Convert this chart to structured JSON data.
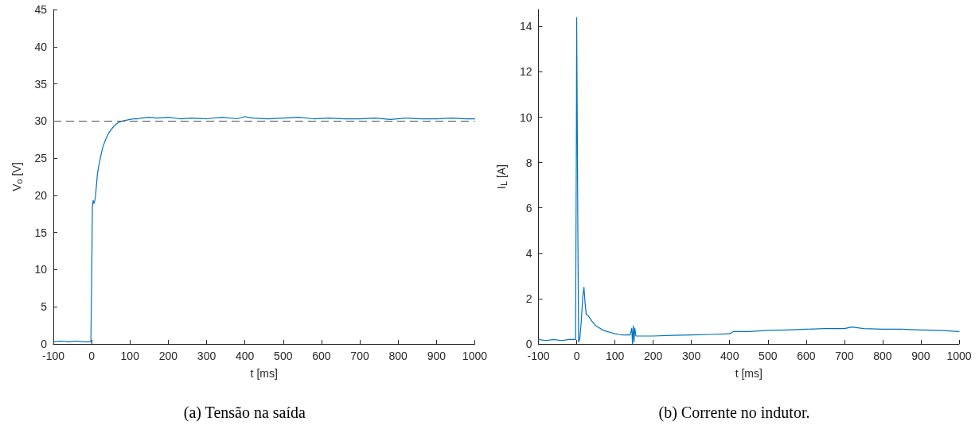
{
  "chart_data": [
    {
      "type": "line",
      "xlabel": "t [ms]",
      "ylabel": "V$_{o}$ [V]",
      "annotations": [
        "(a) Tensão na saída"
      ],
      "xlim": [
        -100,
        1000
      ],
      "xticks": [
        -100,
        0,
        100,
        200,
        300,
        400,
        500,
        600,
        700,
        800,
        900,
        1000
      ],
      "ylim": [
        0,
        45
      ],
      "yticks": [
        0,
        5,
        10,
        15,
        20,
        25,
        30,
        35,
        40,
        45
      ],
      "marker": "none",
      "line_style": "solid",
      "ref_lines": [
        {
          "axis": "y",
          "value": 30,
          "color": "#4d4d4d",
          "line_style": "dashed"
        }
      ],
      "series": [
        {
          "color": "#0072bd",
          "x": [
            -100,
            -80,
            -60,
            -40,
            -20,
            -2,
            0,
            2,
            4,
            6,
            8,
            10,
            12,
            15,
            18,
            22,
            26,
            30,
            35,
            40,
            45,
            50,
            55,
            60,
            65,
            70,
            75,
            80,
            90,
            100,
            110,
            120,
            130,
            150,
            170,
            200,
            230,
            260,
            300,
            340,
            380,
            400,
            420,
            460,
            500,
            540,
            580,
            620,
            660,
            700,
            740,
            780,
            820,
            860,
            900,
            940,
            980,
            1000
          ],
          "values": [
            0.3,
            0.4,
            0.3,
            0.4,
            0.3,
            0.3,
            8,
            18.5,
            19.3,
            18.9,
            19.2,
            19.8,
            21,
            22.8,
            23.8,
            24.8,
            25.8,
            26.6,
            27.3,
            27.9,
            28.4,
            28.8,
            29.1,
            29.4,
            29.6,
            29.8,
            29.9,
            30,
            30.1,
            30.2,
            30.3,
            30.3,
            30.4,
            30.5,
            30.4,
            30.5,
            30.3,
            30.4,
            30.3,
            30.5,
            30.3,
            30.6,
            30.4,
            30.3,
            30.4,
            30.5,
            30.3,
            30.4,
            30.3,
            30.3,
            30.4,
            30.2,
            30.4,
            30.3,
            30.3,
            30.4,
            30.3,
            30.3
          ]
        }
      ]
    },
    {
      "type": "line",
      "xlabel": "t [ms]",
      "ylabel": "I$_{L}$ [A]",
      "annotations": [
        "(b) Corrente no indutor."
      ],
      "xlim": [
        -100,
        1000
      ],
      "xticks": [
        -100,
        0,
        100,
        200,
        300,
        400,
        500,
        600,
        700,
        800,
        900,
        1000
      ],
      "ylim": [
        0,
        14.75
      ],
      "yticks": [
        0,
        2,
        4,
        6,
        8,
        10,
        12,
        14
      ],
      "marker": "none",
      "line_style": "solid",
      "series": [
        {
          "color": "#0072bd",
          "x": [
            -100,
            -80,
            -60,
            -40,
            -20,
            -3,
            -1,
            0,
            3,
            5,
            8,
            12,
            16,
            19,
            22,
            25,
            30,
            40,
            50,
            60,
            70,
            80,
            90,
            100,
            110,
            120,
            130,
            140,
            144,
            146,
            148,
            150,
            152,
            155,
            160,
            200,
            250,
            300,
            350,
            400,
            410,
            450,
            500,
            550,
            600,
            650,
            700,
            720,
            750,
            800,
            850,
            900,
            950,
            1000
          ],
          "values": [
            0.2,
            0.15,
            0.2,
            0.15,
            0.2,
            0.2,
            8,
            14.4,
            5,
            0.1,
            0.2,
            1,
            2.1,
            2.5,
            1.8,
            1.3,
            1.25,
            1,
            0.8,
            0.7,
            0.6,
            0.55,
            0.5,
            0.45,
            0.42,
            0.4,
            0.4,
            0.4,
            0.7,
            0,
            0.8,
            0.1,
            0.7,
            0.35,
            0.35,
            0.35,
            0.38,
            0.4,
            0.42,
            0.45,
            0.55,
            0.55,
            0.6,
            0.62,
            0.65,
            0.68,
            0.68,
            0.75,
            0.68,
            0.65,
            0.65,
            0.62,
            0.6,
            0.55
          ]
        }
      ]
    }
  ]
}
